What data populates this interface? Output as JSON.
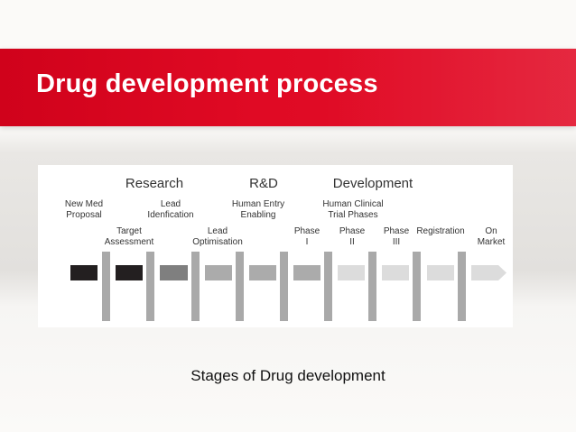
{
  "slide": {
    "title": "Drug development process",
    "caption": "Stages of Drug development"
  },
  "diagram": {
    "categories": [
      "Research",
      "R&D",
      "Development"
    ],
    "stages": [
      {
        "label": "New Med\nProposal",
        "row": 1,
        "color": "#231f20"
      },
      {
        "label": "Target\nAssessment",
        "row": 2,
        "color": "#231f20"
      },
      {
        "label": "Lead\nIdenfication",
        "row": 1,
        "color": "#7f7f7f"
      },
      {
        "label": "Lead\nOptimisation",
        "row": 2,
        "color": "#ababab"
      },
      {
        "label": "Human Entry\nEnabling",
        "row": 1,
        "color": "#ababab"
      },
      {
        "label": "Phase\nI",
        "row": 2,
        "color": "#ababab"
      },
      {
        "label": "Human Clinical\nTrial Phases",
        "row": 1,
        "color": "#dcdcdc"
      },
      {
        "label": "Phase\nII",
        "row": 2,
        "color": "#dcdcdc"
      },
      {
        "label": "Phase\nIII",
        "row": 2,
        "color": "#dcdcdc"
      },
      {
        "label": "Registration",
        "row": 2,
        "color": "#dcdcdc"
      },
      {
        "label": "On\nMarket",
        "row": 2,
        "color": "#dcdcdc"
      }
    ],
    "gate_color": "#a9a9a9"
  }
}
